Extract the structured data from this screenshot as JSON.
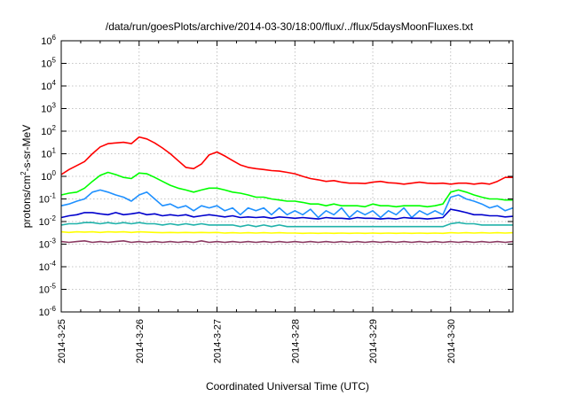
{
  "chart_data": {
    "type": "line",
    "title": "/data/run/goesPlots/archive/2014-03-30/18:00/flux/../flux/5daysMoonFluxes.txt",
    "xlabel": "Coordinated Universal Time (UTC)",
    "ylabel": "protons/cm²-s-sr-MeV",
    "ylabel_parts": {
      "pre": "protons/cm",
      "sup": "2",
      "post": "-s-sr-MeV"
    },
    "y_scale": "log",
    "ylim_exponent": [
      -6,
      6
    ],
    "y_ticks": [
      {
        "base": "10",
        "exp": "-6"
      },
      {
        "base": "10",
        "exp": "-5"
      },
      {
        "base": "10",
        "exp": "-4"
      },
      {
        "base": "10",
        "exp": "-3"
      },
      {
        "base": "10",
        "exp": "-2"
      },
      {
        "base": "10",
        "exp": "-1"
      },
      {
        "base": "10",
        "exp": "0"
      },
      {
        "base": "10",
        "exp": "1"
      },
      {
        "base": "10",
        "exp": "2"
      },
      {
        "base": "10",
        "exp": "3"
      },
      {
        "base": "10",
        "exp": "4"
      },
      {
        "base": "10",
        "exp": "5"
      },
      {
        "base": "10",
        "exp": "6"
      }
    ],
    "x_tick_labels": [
      "2014-3-25",
      "2014-3-26",
      "2014-3-27",
      "2014-3-28",
      "2014-3-29",
      "2014-3-30"
    ],
    "xlim_days": [
      0,
      5.8
    ],
    "grid": true,
    "series": [
      {
        "color": "#ff0000",
        "x": [
          0.0,
          0.1,
          0.2,
          0.3,
          0.4,
          0.5,
          0.6,
          0.7,
          0.8,
          0.9,
          1.0,
          1.1,
          1.2,
          1.3,
          1.4,
          1.5,
          1.6,
          1.7,
          1.8,
          1.9,
          2.0,
          2.1,
          2.2,
          2.3,
          2.4,
          2.5,
          2.6,
          2.7,
          2.8,
          2.9,
          3.0,
          3.1,
          3.2,
          3.3,
          3.4,
          3.5,
          3.6,
          3.7,
          3.8,
          3.9,
          4.0,
          4.1,
          4.2,
          4.3,
          4.4,
          4.5,
          4.6,
          4.7,
          4.8,
          4.9,
          5.0,
          5.1,
          5.2,
          5.3,
          5.4,
          5.5,
          5.6,
          5.7,
          5.8
        ],
        "y": [
          1.2,
          2.0,
          3.0,
          4.5,
          10,
          20,
          28,
          30,
          32,
          28,
          55,
          45,
          30,
          18,
          10,
          5,
          2.5,
          2.2,
          3.5,
          9,
          12,
          8,
          5,
          3.2,
          2.5,
          2.2,
          2.0,
          1.8,
          1.7,
          1.5,
          1.3,
          1.0,
          0.8,
          0.7,
          0.6,
          0.65,
          0.55,
          0.5,
          0.5,
          0.48,
          0.55,
          0.6,
          0.52,
          0.5,
          0.45,
          0.5,
          0.55,
          0.5,
          0.48,
          0.5,
          0.45,
          0.5,
          0.5,
          0.45,
          0.5,
          0.45,
          0.6,
          0.9,
          0.9
        ]
      },
      {
        "color": "#00ff00",
        "x": [
          0.0,
          0.1,
          0.2,
          0.3,
          0.4,
          0.5,
          0.6,
          0.7,
          0.8,
          0.9,
          1.0,
          1.1,
          1.2,
          1.3,
          1.4,
          1.5,
          1.6,
          1.7,
          1.8,
          1.9,
          2.0,
          2.1,
          2.2,
          2.3,
          2.4,
          2.5,
          2.6,
          2.7,
          2.8,
          2.9,
          3.0,
          3.1,
          3.2,
          3.3,
          3.4,
          3.5,
          3.6,
          3.7,
          3.8,
          3.9,
          4.0,
          4.1,
          4.2,
          4.3,
          4.4,
          4.5,
          4.6,
          4.7,
          4.8,
          4.9,
          5.0,
          5.1,
          5.2,
          5.3,
          5.4,
          5.5,
          5.6,
          5.7,
          5.8
        ],
        "y": [
          0.15,
          0.18,
          0.2,
          0.3,
          0.6,
          1.1,
          1.5,
          1.2,
          0.9,
          0.8,
          1.4,
          1.3,
          0.9,
          0.6,
          0.4,
          0.3,
          0.25,
          0.2,
          0.25,
          0.3,
          0.3,
          0.25,
          0.2,
          0.18,
          0.15,
          0.12,
          0.12,
          0.1,
          0.09,
          0.08,
          0.08,
          0.07,
          0.06,
          0.06,
          0.05,
          0.06,
          0.05,
          0.05,
          0.05,
          0.045,
          0.06,
          0.05,
          0.05,
          0.045,
          0.05,
          0.05,
          0.05,
          0.045,
          0.05,
          0.06,
          0.2,
          0.25,
          0.2,
          0.15,
          0.12,
          0.1,
          0.1,
          0.09,
          0.09
        ]
      },
      {
        "color": "#1e90ff",
        "x": [
          0.0,
          0.1,
          0.2,
          0.3,
          0.4,
          0.5,
          0.6,
          0.7,
          0.8,
          0.9,
          1.0,
          1.1,
          1.2,
          1.3,
          1.4,
          1.5,
          1.6,
          1.7,
          1.8,
          1.9,
          2.0,
          2.1,
          2.2,
          2.3,
          2.4,
          2.5,
          2.6,
          2.7,
          2.8,
          2.9,
          3.0,
          3.1,
          3.2,
          3.3,
          3.4,
          3.5,
          3.6,
          3.7,
          3.8,
          3.9,
          4.0,
          4.1,
          4.2,
          4.3,
          4.4,
          4.5,
          4.6,
          4.7,
          4.8,
          4.9,
          5.0,
          5.1,
          5.2,
          5.3,
          5.4,
          5.5,
          5.6,
          5.7,
          5.8
        ],
        "y": [
          0.05,
          0.06,
          0.08,
          0.1,
          0.2,
          0.25,
          0.2,
          0.15,
          0.12,
          0.08,
          0.15,
          0.2,
          0.1,
          0.05,
          0.06,
          0.04,
          0.05,
          0.03,
          0.05,
          0.04,
          0.05,
          0.03,
          0.04,
          0.02,
          0.04,
          0.03,
          0.04,
          0.02,
          0.04,
          0.02,
          0.03,
          0.02,
          0.035,
          0.015,
          0.03,
          0.02,
          0.04,
          0.015,
          0.03,
          0.02,
          0.03,
          0.015,
          0.03,
          0.02,
          0.04,
          0.015,
          0.03,
          0.02,
          0.03,
          0.02,
          0.12,
          0.15,
          0.1,
          0.08,
          0.06,
          0.04,
          0.05,
          0.03,
          0.04
        ]
      },
      {
        "color": "#0000cd",
        "x": [
          0.0,
          0.1,
          0.2,
          0.3,
          0.4,
          0.5,
          0.6,
          0.7,
          0.8,
          0.9,
          1.0,
          1.1,
          1.2,
          1.3,
          1.4,
          1.5,
          1.6,
          1.7,
          1.8,
          1.9,
          2.0,
          2.1,
          2.2,
          2.3,
          2.4,
          2.5,
          2.6,
          2.7,
          2.8,
          2.9,
          3.0,
          3.1,
          3.2,
          3.3,
          3.4,
          3.5,
          3.6,
          3.7,
          3.8,
          3.9,
          4.0,
          4.1,
          4.2,
          4.3,
          4.4,
          4.5,
          4.6,
          4.7,
          4.8,
          4.9,
          5.0,
          5.1,
          5.2,
          5.3,
          5.4,
          5.5,
          5.6,
          5.7,
          5.8
        ],
        "y": [
          0.015,
          0.018,
          0.02,
          0.025,
          0.025,
          0.022,
          0.02,
          0.025,
          0.02,
          0.022,
          0.025,
          0.02,
          0.022,
          0.018,
          0.02,
          0.018,
          0.02,
          0.016,
          0.018,
          0.02,
          0.018,
          0.016,
          0.018,
          0.015,
          0.016,
          0.015,
          0.016,
          0.014,
          0.016,
          0.015,
          0.014,
          0.015,
          0.014,
          0.013,
          0.015,
          0.014,
          0.014,
          0.013,
          0.015,
          0.014,
          0.014,
          0.013,
          0.014,
          0.013,
          0.015,
          0.014,
          0.014,
          0.013,
          0.014,
          0.015,
          0.035,
          0.03,
          0.025,
          0.02,
          0.02,
          0.018,
          0.018,
          0.016,
          0.017
        ]
      },
      {
        "color": "#20b2aa",
        "x": [
          0.0,
          0.1,
          0.2,
          0.3,
          0.4,
          0.5,
          0.6,
          0.7,
          0.8,
          0.9,
          1.0,
          1.1,
          1.2,
          1.3,
          1.4,
          1.5,
          1.6,
          1.7,
          1.8,
          1.9,
          2.0,
          2.1,
          2.2,
          2.3,
          2.4,
          2.5,
          2.6,
          2.7,
          2.8,
          2.9,
          3.0,
          3.1,
          3.2,
          3.3,
          3.4,
          3.5,
          3.6,
          3.7,
          3.8,
          3.9,
          4.0,
          4.1,
          4.2,
          4.3,
          4.4,
          4.5,
          4.6,
          4.7,
          4.8,
          4.9,
          5.0,
          5.1,
          5.2,
          5.3,
          5.4,
          5.5,
          5.6,
          5.7,
          5.8
        ],
        "y": [
          0.007,
          0.008,
          0.008,
          0.009,
          0.009,
          0.008,
          0.009,
          0.008,
          0.009,
          0.008,
          0.009,
          0.008,
          0.008,
          0.007,
          0.008,
          0.007,
          0.008,
          0.007,
          0.008,
          0.007,
          0.007,
          0.007,
          0.007,
          0.006,
          0.007,
          0.006,
          0.007,
          0.006,
          0.007,
          0.006,
          0.006,
          0.006,
          0.006,
          0.006,
          0.006,
          0.006,
          0.006,
          0.006,
          0.006,
          0.006,
          0.006,
          0.006,
          0.006,
          0.006,
          0.006,
          0.006,
          0.006,
          0.006,
          0.006,
          0.006,
          0.008,
          0.009,
          0.008,
          0.008,
          0.007,
          0.007,
          0.007,
          0.007,
          0.007
        ]
      },
      {
        "color": "#ffff00",
        "x": [
          0.0,
          0.1,
          0.2,
          0.3,
          0.4,
          0.5,
          0.6,
          0.7,
          0.8,
          0.9,
          1.0,
          1.1,
          1.2,
          1.3,
          1.4,
          1.5,
          1.6,
          1.7,
          1.8,
          1.9,
          2.0,
          2.1,
          2.2,
          2.3,
          2.4,
          2.5,
          2.6,
          2.7,
          2.8,
          2.9,
          3.0,
          3.1,
          3.2,
          3.3,
          3.4,
          3.5,
          3.6,
          3.7,
          3.8,
          3.9,
          4.0,
          4.1,
          4.2,
          4.3,
          4.4,
          4.5,
          4.6,
          4.7,
          4.8,
          4.9,
          5.0,
          5.1,
          5.2,
          5.3,
          5.4,
          5.5,
          5.6,
          5.7,
          5.8
        ],
        "y": [
          0.0035,
          0.0033,
          0.0035,
          0.0034,
          0.0035,
          0.0033,
          0.0035,
          0.0034,
          0.0035,
          0.0033,
          0.0035,
          0.0034,
          0.0033,
          0.0032,
          0.0033,
          0.0032,
          0.0033,
          0.0032,
          0.0033,
          0.0032,
          0.0033,
          0.0031,
          0.0032,
          0.0031,
          0.0032,
          0.0031,
          0.0032,
          0.0031,
          0.0032,
          0.0031,
          0.0031,
          0.003,
          0.0031,
          0.003,
          0.0031,
          0.003,
          0.0031,
          0.003,
          0.0031,
          0.003,
          0.0031,
          0.003,
          0.0031,
          0.003,
          0.0031,
          0.003,
          0.0031,
          0.003,
          0.0031,
          0.003,
          0.0032,
          0.0031,
          0.0032,
          0.0031,
          0.0032,
          0.0031,
          0.0032,
          0.0031,
          0.0032
        ]
      },
      {
        "color": "#8b3a62",
        "x": [
          0.0,
          0.1,
          0.2,
          0.3,
          0.4,
          0.5,
          0.6,
          0.7,
          0.8,
          0.9,
          1.0,
          1.1,
          1.2,
          1.3,
          1.4,
          1.5,
          1.6,
          1.7,
          1.8,
          1.9,
          2.0,
          2.1,
          2.2,
          2.3,
          2.4,
          2.5,
          2.6,
          2.7,
          2.8,
          2.9,
          3.0,
          3.1,
          3.2,
          3.3,
          3.4,
          3.5,
          3.6,
          3.7,
          3.8,
          3.9,
          4.0,
          4.1,
          4.2,
          4.3,
          4.4,
          4.5,
          4.6,
          4.7,
          4.8,
          4.9,
          5.0,
          5.1,
          5.2,
          5.3,
          5.4,
          5.5,
          5.6,
          5.7,
          5.8
        ],
        "y": [
          0.0013,
          0.0012,
          0.0013,
          0.0014,
          0.0012,
          0.0013,
          0.0012,
          0.0013,
          0.0014,
          0.0012,
          0.0013,
          0.0012,
          0.0013,
          0.0012,
          0.0013,
          0.0012,
          0.0013,
          0.0012,
          0.0014,
          0.0012,
          0.0013,
          0.0012,
          0.0013,
          0.0012,
          0.0013,
          0.0012,
          0.0013,
          0.0012,
          0.0013,
          0.0012,
          0.0013,
          0.0012,
          0.0013,
          0.0012,
          0.0013,
          0.0012,
          0.0013,
          0.0012,
          0.0013,
          0.0012,
          0.0013,
          0.0012,
          0.0013,
          0.0012,
          0.0013,
          0.0012,
          0.0013,
          0.0012,
          0.0013,
          0.0012,
          0.0013,
          0.0012,
          0.0013,
          0.0012,
          0.0013,
          0.0012,
          0.0013,
          0.0012,
          0.0013
        ]
      }
    ]
  }
}
